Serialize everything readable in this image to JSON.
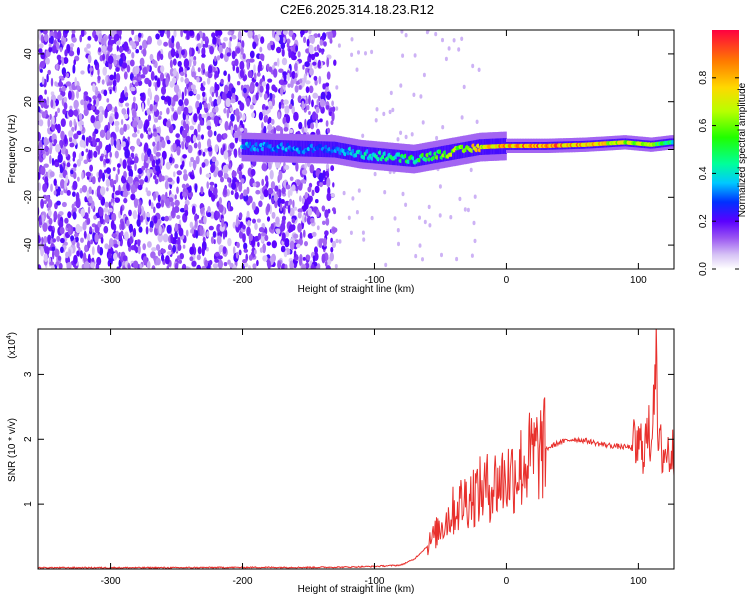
{
  "figure": {
    "title": "C2E6.2025.314.18.23.R12"
  },
  "chart_data": [
    {
      "type": "heatmap",
      "title": "C2E6.2025.314.18.23.R12",
      "xlabel": "Height of straight line (km)",
      "ylabel": "Frequency (Hz)",
      "xlim": [
        -355,
        127
      ],
      "ylim": [
        -50,
        50
      ],
      "x_ticks": [
        -300,
        -200,
        -100,
        0,
        100
      ],
      "y_ticks": [
        -40,
        -20,
        0,
        20,
        40
      ],
      "colorbar": {
        "label": "Normalized spectral amplitude",
        "range": [
          0.0,
          1.0
        ],
        "ticks": [
          "0.0",
          "0.2",
          "0.4",
          "0.6",
          "0.8"
        ],
        "tick_values": [
          0.0,
          0.2,
          0.4,
          0.6,
          0.8
        ]
      },
      "ridge": [
        {
          "x": -195,
          "y": 1,
          "v": 0.4
        },
        {
          "x": -130,
          "y": 0,
          "v": 0.35
        },
        {
          "x": -110,
          "y": -2,
          "v": 0.45
        },
        {
          "x": -90,
          "y": -3,
          "v": 0.5
        },
        {
          "x": -70,
          "y": -4,
          "v": 0.55
        },
        {
          "x": -50,
          "y": -2,
          "v": 0.65
        },
        {
          "x": -20,
          "y": 1,
          "v": 0.85
        },
        {
          "x": 0,
          "y": 1.5,
          "v": 0.95
        },
        {
          "x": 30,
          "y": 1.5,
          "v": 1.0
        },
        {
          "x": 60,
          "y": 2,
          "v": 0.9
        },
        {
          "x": 90,
          "y": 3,
          "v": 0.75
        },
        {
          "x": 110,
          "y": 2,
          "v": 0.7
        },
        {
          "x": 125,
          "y": 3,
          "v": 0.5
        }
      ]
    },
    {
      "type": "line",
      "xlabel": "Height of straight line (km)",
      "ylabel": "SNR (10 * v/v)",
      "y_multiplier": "(x10",
      "y_multiplier_exp": "4",
      "y_multiplier_close": ")",
      "xlim": [
        -355,
        127
      ],
      "ylim": [
        0,
        37000
      ],
      "x_ticks": [
        -300,
        -200,
        -100,
        0,
        100
      ],
      "y_ticks": [
        1,
        2,
        3
      ],
      "line_color": "#e8302c",
      "series": [
        {
          "x": [
            -355,
            -300,
            -250,
            -200,
            -150,
            -120,
            -100,
            -80,
            -70,
            -60,
            -50,
            -40,
            -30,
            -20,
            -10,
            0,
            10,
            20,
            30,
            40,
            50,
            60,
            70,
            80,
            90,
            100,
            105,
            110,
            113,
            115,
            120,
            127
          ],
          "values": [
            200,
            200,
            200,
            250,
            250,
            300,
            400,
            600,
            1500,
            3500,
            6500,
            9000,
            11000,
            12000,
            13000,
            14000,
            15500,
            17500,
            18500,
            19500,
            20000,
            19800,
            19300,
            19000,
            18800,
            18700,
            19500,
            21000,
            35000,
            18500,
            18000,
            17800
          ]
        }
      ]
    }
  ]
}
